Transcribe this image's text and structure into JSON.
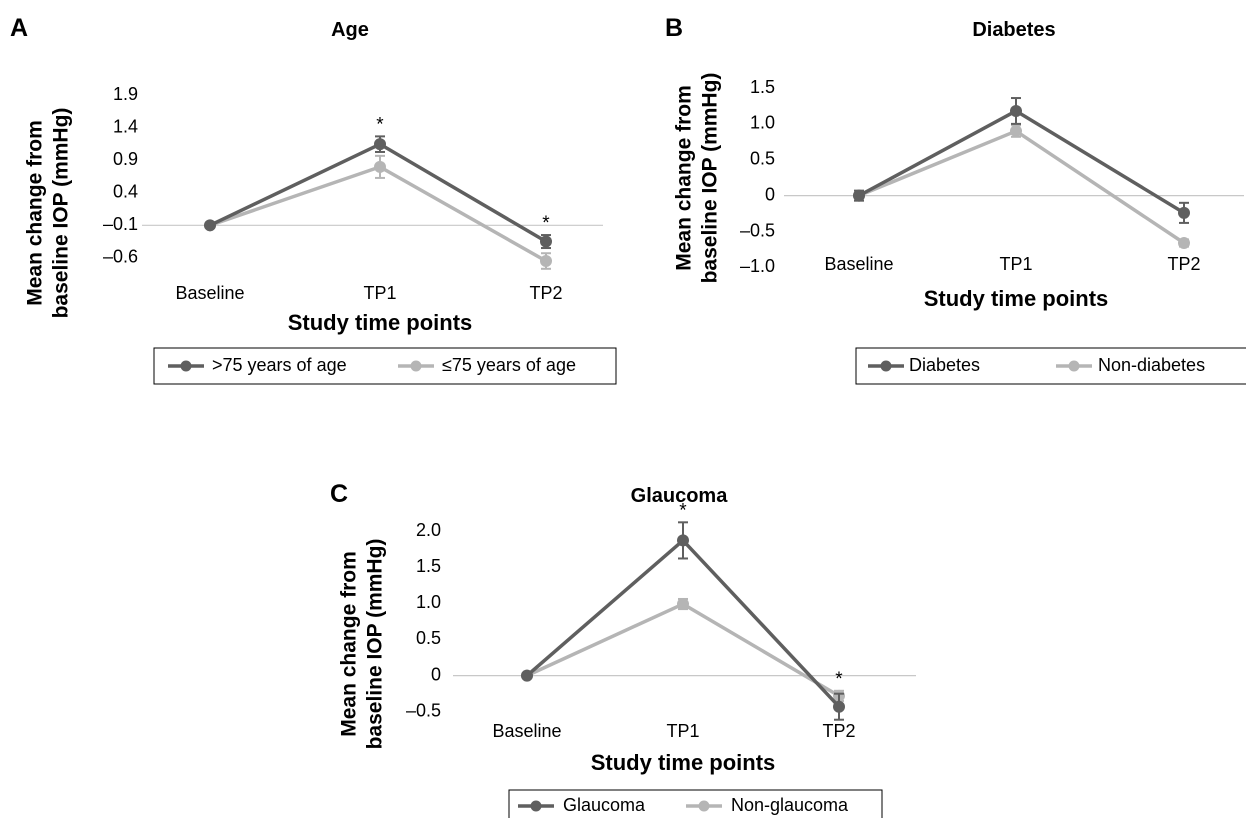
{
  "colors": {
    "dark": "#5f5f5f",
    "light": "#b5b5b5",
    "axis": "#c8c8c8"
  },
  "chart_data": [
    {
      "panel": "A",
      "type": "line",
      "title": "Age",
      "ylabel_lines": [
        "Mean change from",
        "baseline IOP (mmHg)"
      ],
      "xlabel": "Study time points",
      "categories": [
        "Baseline",
        "TP1",
        "TP2"
      ],
      "yticks": [
        "1.9",
        "1.4",
        "0.9",
        "0.4",
        "–0.1",
        "–0.6"
      ],
      "ylim": [
        -0.85,
        2.0
      ],
      "baseline_value": -0.1,
      "series": [
        {
          "name": ">75 years of age",
          "color": "#5f5f5f",
          "values": [
            -0.1,
            1.15,
            -0.35
          ],
          "errors": [
            0,
            0.12,
            0.1
          ]
        },
        {
          "name": "≤75 years of age",
          "color": "#b5b5b5",
          "values": [
            -0.1,
            0.8,
            -0.65
          ],
          "errors": [
            0,
            0.17,
            0.12
          ]
        }
      ],
      "annotations": [
        {
          "category": "TP1",
          "text": "*"
        },
        {
          "category": "TP2",
          "text": "*"
        }
      ],
      "legend_position": "bottom"
    },
    {
      "panel": "B",
      "type": "line",
      "title": "Diabetes",
      "ylabel_lines": [
        "Mean change from",
        "baseline IOP (mmHg)"
      ],
      "xlabel": "Study time points",
      "categories": [
        "Baseline",
        "TP1",
        "TP2"
      ],
      "yticks": [
        "1.5",
        "1.0",
        "0.5",
        "0",
        "–0.5",
        "–1.0"
      ],
      "ylim": [
        -1.05,
        1.5
      ],
      "baseline_value": 0,
      "series": [
        {
          "name": "Diabetes",
          "color": "#5f5f5f",
          "values": [
            0,
            1.18,
            -0.24
          ],
          "errors": [
            0.07,
            0.18,
            0.14
          ]
        },
        {
          "name": "Non-diabetes",
          "color": "#b5b5b5",
          "values": [
            0,
            0.9,
            -0.66
          ],
          "errors": [
            0,
            0.08,
            0.05
          ]
        }
      ],
      "annotations": [],
      "legend_position": "bottom"
    },
    {
      "panel": "C",
      "type": "line",
      "title": "Glaucoma",
      "ylabel_lines": [
        "Mean change from",
        "baseline IOP (mmHg)"
      ],
      "xlabel": "Study time points",
      "categories": [
        "Baseline",
        "TP1",
        "TP2"
      ],
      "yticks": [
        "2.0",
        "1.5",
        "1.0",
        "0.5",
        "0",
        "–0.5"
      ],
      "ylim": [
        -0.6,
        2.0
      ],
      "baseline_value": 0,
      "series": [
        {
          "name": "Glaucoma",
          "color": "#5f5f5f",
          "values": [
            0,
            1.87,
            -0.43
          ],
          "errors": [
            0,
            0.25,
            0.18
          ]
        },
        {
          "name": "Non-glaucoma",
          "color": "#b5b5b5",
          "values": [
            0,
            0.99,
            -0.28
          ],
          "errors": [
            0,
            0.07,
            0.07
          ]
        }
      ],
      "annotations": [
        {
          "category": "TP1",
          "text": "*"
        },
        {
          "category": "TP2",
          "text": "*"
        }
      ],
      "legend_position": "bottom"
    }
  ]
}
